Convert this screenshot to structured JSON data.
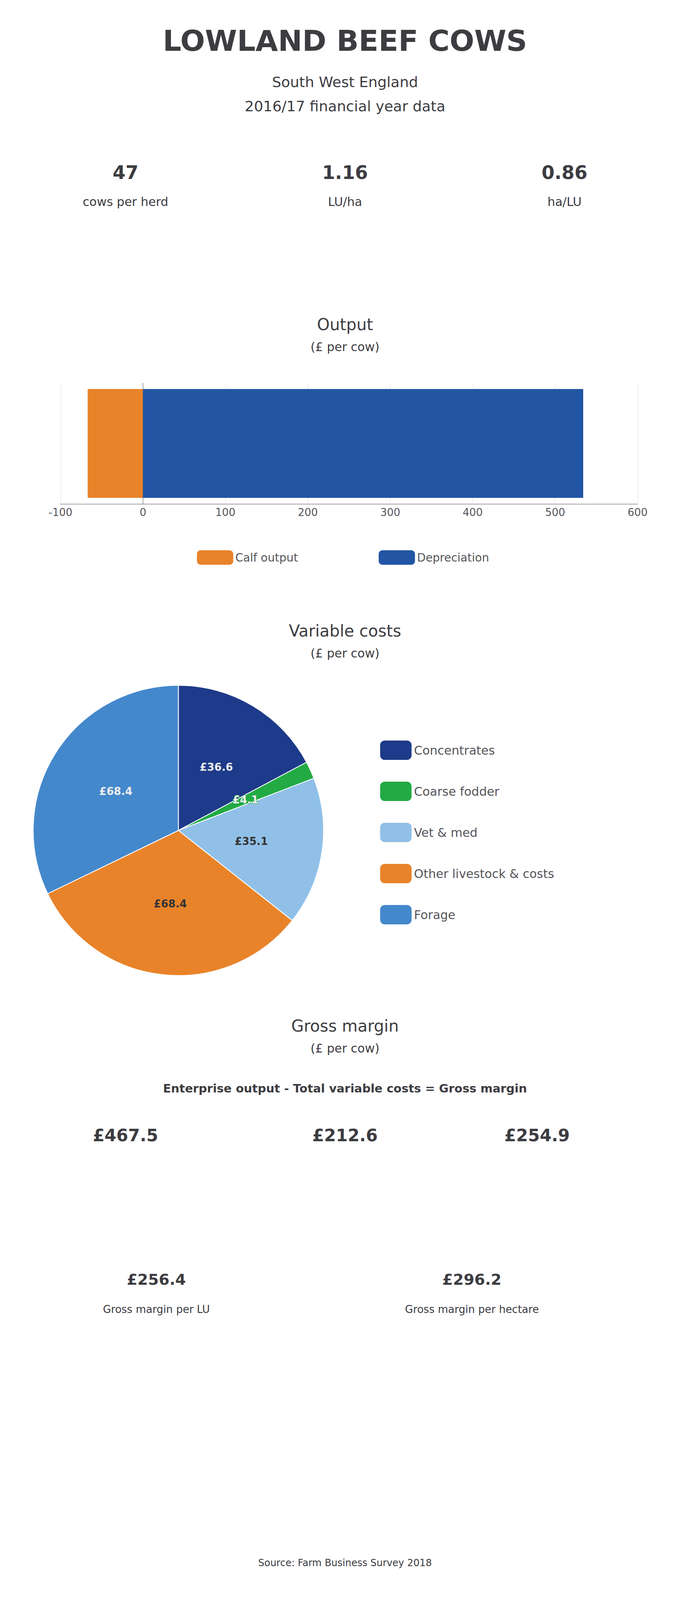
{
  "title": "LOWLAND BEEF COWS",
  "subtitle": [
    "South West England",
    "2016/17 financial year data"
  ],
  "annotations": {
    "stats": [
      {
        "value": "47",
        "label": "cows per herd"
      },
      {
        "value": "1.16",
        "label": "LU/ha"
      },
      {
        "value": "0.86",
        "label": "ha/LU"
      }
    ],
    "gross_margin": {
      "title": "Gross margin",
      "subtitle": "(£ per cow)",
      "equation": "Enterprise output - Total variable costs = Gross margin",
      "values": [
        "£467.5",
        "£212.6",
        "£254.9"
      ],
      "per_lu": {
        "value": "£256.4",
        "label": "Gross margin per LU"
      },
      "per_ha": {
        "value": "£296.2",
        "label": "Gross margin per hectare"
      }
    },
    "source": "Source: Farm Business Survey 2018"
  },
  "chart_data": [
    {
      "type": "bar",
      "orientation": "horizontal",
      "title": "Output",
      "subtitle": "(£ per cow)",
      "categories": [
        null
      ],
      "series": [
        {
          "name": "Calf output",
          "color": "#E8832A",
          "values": [
            -67
          ]
        },
        {
          "name": "Depreciation",
          "color": "#2255A4",
          "values": [
            534
          ]
        }
      ],
      "xlim": [
        -100,
        600
      ],
      "xticks": [
        -100,
        0,
        100,
        200,
        300,
        400,
        500,
        600
      ],
      "grid": true,
      "legend": "bottom",
      "tick_labels": "x"
    },
    {
      "type": "pie",
      "title": "Variable costs",
      "subtitle": "(£ per cow)",
      "categories": [
        "Concentrates",
        "Coarse fodder",
        "Vet & med",
        "Other livestock & costs",
        "Forage"
      ],
      "values": [
        36.6,
        4.1,
        35.1,
        68.4,
        68.4
      ],
      "value_labels": [
        "£36.6",
        "£4.1",
        "£35.1",
        "£68.4",
        "£68.4"
      ],
      "colors": [
        "#1E3A8A",
        "#22AA44",
        "#90C0E8",
        "#E8832A",
        "#4488CC"
      ],
      "data_labels": true,
      "legend": "right"
    }
  ]
}
